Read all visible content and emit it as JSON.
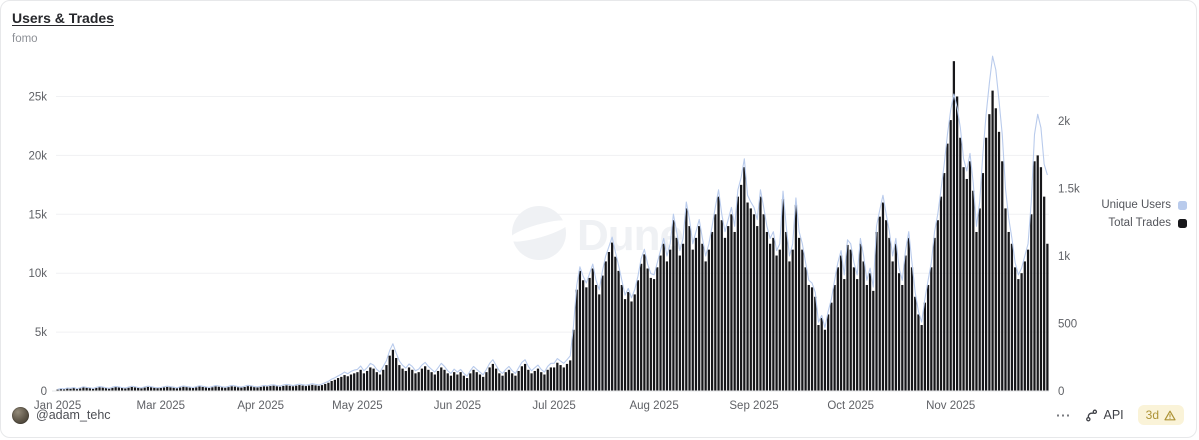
{
  "card": {
    "title": "Users & Trades",
    "subtitle": "fomo"
  },
  "watermark": {
    "text": "Dune"
  },
  "legend": [
    {
      "label": "Unique Users",
      "color": "#b9cbec"
    },
    {
      "label": "Total Trades",
      "color": "#17171a"
    }
  ],
  "footer": {
    "author_handle": "@adam_tehc",
    "menu_label": "⋯",
    "api_label": "API",
    "staleness_badge": "3d"
  },
  "chart_data": {
    "type": "bar",
    "title": "Users & Trades",
    "subtitle": "fomo",
    "x_unit": "day",
    "grid": true,
    "legend_position": "right",
    "x_month_ticks": [
      {
        "label": "Jan 2025",
        "index": 0
      },
      {
        "label": "Mar 2025",
        "index": 32
      },
      {
        "label": "Apr 2025",
        "index": 63
      },
      {
        "label": "May 2025",
        "index": 93
      },
      {
        "label": "Jun 2025",
        "index": 124
      },
      {
        "label": "Jul 2025",
        "index": 154
      },
      {
        "label": "Aug 2025",
        "index": 185
      },
      {
        "label": "Sep 2025",
        "index": 216
      },
      {
        "label": "Oct 2025",
        "index": 246
      },
      {
        "label": "Nov 2025",
        "index": 277
      }
    ],
    "left_axis": {
      "series": "Total Trades",
      "tick_labels": [
        "0",
        "5k",
        "10k",
        "15k",
        "20k",
        "25k"
      ],
      "tick_values": [
        0,
        5000,
        10000,
        15000,
        20000,
        25000
      ]
    },
    "right_axis": {
      "series": "Unique Users",
      "tick_labels": [
        "0",
        "500",
        "1k",
        "1.5k",
        "2k"
      ],
      "tick_values": [
        0,
        500,
        1000,
        1500,
        2000
      ]
    },
    "series": [
      {
        "name": "Total Trades",
        "type": "bar",
        "axis": "left",
        "color": "#17171a",
        "values": [
          120,
          180,
          150,
          210,
          200,
          250,
          180,
          220,
          300,
          280,
          240,
          200,
          260,
          320,
          290,
          250,
          210,
          270,
          330,
          300,
          260,
          230,
          280,
          340,
          310,
          270,
          240,
          290,
          350,
          320,
          280,
          250,
          260,
          300,
          350,
          320,
          280,
          240,
          300,
          360,
          330,
          290,
          260,
          310,
          380,
          350,
          300,
          270,
          320,
          390,
          360,
          310,
          280,
          330,
          400,
          370,
          320,
          290,
          340,
          410,
          380,
          330,
          300,
          350,
          400,
          380,
          420,
          450,
          400,
          360,
          430,
          480,
          440,
          400,
          450,
          500,
          460,
          420,
          470,
          520,
          480,
          440,
          500,
          600,
          700,
          850,
          950,
          1100,
          1200,
          1350,
          1250,
          1400,
          1500,
          1600,
          1800,
          1500,
          1700,
          2000,
          1900,
          1600,
          1400,
          1800,
          2200,
          3000,
          3500,
          2800,
          2200,
          1900,
          1700,
          2000,
          1800,
          1500,
          1600,
          1900,
          2100,
          1800,
          1600,
          1400,
          1700,
          2000,
          1800,
          1500,
          1300,
          1600,
          1400,
          1600,
          1300,
          1100,
          1500,
          1800,
          1600,
          1400,
          1200,
          1600,
          2000,
          2300,
          1900,
          1500,
          1300,
          1600,
          1800,
          1500,
          1300,
          1700,
          2100,
          2300,
          1800,
          1500,
          1700,
          1900,
          1600,
          1400,
          1800,
          2000,
          2000,
          2400,
          2200,
          2000,
          2300,
          2600,
          5200,
          8600,
          10200,
          9400,
          8800,
          9600,
          10400,
          9000,
          8200,
          9800,
          11000,
          11800,
          12600,
          11400,
          10200,
          9000,
          7800,
          8400,
          7600,
          8200,
          9400,
          10800,
          11600,
          10400,
          9600,
          9500,
          10500,
          11500,
          12500,
          11000,
          12000,
          14500,
          13000,
          11500,
          12500,
          15500,
          14000,
          12000,
          13000,
          14000,
          12500,
          11000,
          12000,
          13500,
          15000,
          16500,
          14500,
          13000,
          14000,
          15000,
          13500,
          16500,
          17500,
          19000,
          16000,
          15500,
          15000,
          14000,
          16500,
          15000,
          13500,
          12500,
          13000,
          11500,
          12000,
          16300,
          13500,
          11000,
          12000,
          15800,
          13000,
          12000,
          10500,
          9000,
          8800,
          8000,
          5600,
          6200,
          5200,
          6500,
          7500,
          9000,
          10500,
          11500,
          9500,
          12400,
          12000,
          10500,
          9500,
          12500,
          11000,
          9000,
          10000,
          8500,
          13500,
          14800,
          16000,
          14500,
          13000,
          11000,
          12500,
          10000,
          9000,
          11500,
          13000,
          10500,
          8000,
          6500,
          5600,
          7500,
          9000,
          10500,
          13000,
          14500,
          16500,
          18500,
          21000,
          23000,
          28000,
          25000,
          21500,
          19000,
          18000,
          19500,
          17000,
          13500,
          15500,
          18500,
          21500,
          23500,
          25500,
          24000,
          22000,
          19500,
          15500,
          13500,
          12500,
          10500,
          9500,
          10000,
          11000,
          12000,
          15000,
          19500,
          20000,
          19000,
          16500,
          12500
        ]
      },
      {
        "name": "Unique Users",
        "type": "line",
        "axis": "right",
        "color": "#b9cbec",
        "values": [
          12,
          18,
          15,
          22,
          20,
          26,
          17,
          23,
          31,
          27,
          24,
          19,
          27,
          33,
          29,
          24,
          20,
          28,
          34,
          30,
          25,
          22,
          29,
          35,
          31,
          26,
          23,
          30,
          36,
          32,
          27,
          24,
          26,
          31,
          36,
          32,
          28,
          23,
          31,
          37,
          33,
          29,
          26,
          32,
          39,
          35,
          30,
          27,
          33,
          40,
          37,
          31,
          28,
          34,
          41,
          38,
          32,
          29,
          35,
          42,
          39,
          33,
          30,
          35,
          41,
          38,
          43,
          46,
          40,
          36,
          44,
          49,
          45,
          40,
          46,
          51,
          47,
          42,
          48,
          53,
          49,
          44,
          51,
          62,
          72,
          88,
          98,
          112,
          124,
          140,
          128,
          145,
          155,
          160,
          185,
          150,
          172,
          205,
          192,
          160,
          140,
          182,
          225,
          300,
          350,
          282,
          222,
          190,
          170,
          200,
          182,
          150,
          162,
          192,
          212,
          182,
          160,
          140,
          172,
          205,
          182,
          150,
          130,
          162,
          140,
          160,
          130,
          110,
          150,
          182,
          160,
          140,
          120,
          160,
          205,
          232,
          190,
          150,
          130,
          160,
          182,
          150,
          130,
          172,
          212,
          232,
          182,
          150,
          172,
          192,
          160,
          140,
          182,
          205,
          205,
          240,
          222,
          205,
          232,
          260,
          480,
          780,
          920,
          850,
          800,
          870,
          940,
          820,
          750,
          890,
          1000,
          1070,
          1140,
          1030,
          930,
          820,
          710,
          760,
          690,
          750,
          850,
          980,
          1050,
          940,
          870,
          860,
          950,
          1040,
          1130,
          1000,
          1090,
          1310,
          1180,
          1040,
          1130,
          1400,
          1270,
          1090,
          1180,
          1270,
          1130,
          1000,
          1090,
          1220,
          1360,
          1490,
          1310,
          1180,
          1270,
          1360,
          1220,
          1490,
          1580,
          1720,
          1450,
          1400,
          1360,
          1270,
          1490,
          1360,
          1220,
          1130,
          1180,
          1040,
          1090,
          1480,
          1220,
          1000,
          1090,
          1430,
          1180,
          1090,
          950,
          820,
          800,
          730,
          510,
          560,
          470,
          590,
          680,
          820,
          950,
          1040,
          860,
          1120,
          1090,
          950,
          860,
          1130,
          1000,
          820,
          910,
          770,
          1220,
          1340,
          1450,
          1310,
          1180,
          1000,
          1130,
          910,
          820,
          1040,
          1180,
          950,
          730,
          590,
          510,
          680,
          820,
          950,
          1180,
          1310,
          1490,
          1680,
          1900,
          2080,
          2200,
          2100,
          1950,
          1720,
          1630,
          1760,
          1540,
          1220,
          1400,
          1760,
          2050,
          2280,
          2480,
          2380,
          2150,
          1900,
          1500,
          1280,
          1130,
          950,
          860,
          910,
          1000,
          1090,
          1400,
          1900,
          2050,
          1950,
          1680,
          1600
        ]
      }
    ]
  }
}
